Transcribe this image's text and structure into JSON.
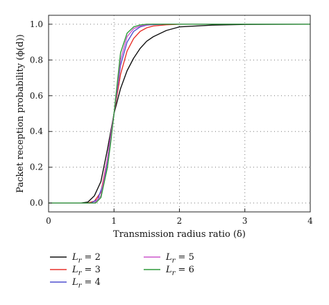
{
  "chart_data": {
    "type": "line",
    "title": "",
    "xlabel": "Transmission radius ratio (δ)",
    "ylabel": "Packet reception probability (ϕ(d))",
    "xlim": [
      0,
      4
    ],
    "ylim": [
      -0.05,
      1.05
    ],
    "xticks": [
      0,
      1,
      2,
      3,
      4
    ],
    "yticks": [
      0.0,
      0.2,
      0.4,
      0.6,
      0.8,
      1.0
    ],
    "xtick_labels": [
      "0",
      "1",
      "2",
      "3",
      "4"
    ],
    "ytick_labels": [
      "0.0",
      "0.2",
      "0.4",
      "0.6",
      "0.8",
      "1.0"
    ],
    "grid": true,
    "grid_style": "dotted",
    "legend_position": "below",
    "series": [
      {
        "name": "L_r = 2",
        "name_parts": [
          "L",
          "r",
          " = 2"
        ],
        "color": "#111111",
        "x": [
          0,
          0.5,
          0.6,
          0.7,
          0.8,
          0.9,
          1.0,
          1.1,
          1.2,
          1.3,
          1.4,
          1.5,
          1.6,
          1.8,
          2.0,
          2.5,
          3.0,
          4.0
        ],
        "y": [
          0,
          0,
          0.005,
          0.04,
          0.12,
          0.3,
          0.5,
          0.64,
          0.74,
          0.81,
          0.865,
          0.905,
          0.93,
          0.965,
          0.985,
          0.995,
          0.999,
          1.0
        ]
      },
      {
        "name": "L_r = 3",
        "name_parts": [
          "L",
          "r",
          " = 3"
        ],
        "color": "#e8312a",
        "x": [
          0,
          0.6,
          0.7,
          0.8,
          0.9,
          1.0,
          1.1,
          1.2,
          1.3,
          1.4,
          1.5,
          1.6,
          1.8,
          2.0,
          4.0
        ],
        "y": [
          0,
          0,
          0.01,
          0.06,
          0.25,
          0.5,
          0.72,
          0.85,
          0.92,
          0.96,
          0.98,
          0.99,
          0.997,
          1.0,
          1.0
        ]
      },
      {
        "name": "L_r = 4",
        "name_parts": [
          "L",
          "r",
          " = 4"
        ],
        "color": "#4f4fcf",
        "x": [
          0,
          0.65,
          0.75,
          0.85,
          0.95,
          1.0,
          1.1,
          1.2,
          1.3,
          1.4,
          1.5,
          1.6,
          1.8,
          4.0
        ],
        "y": [
          0,
          0,
          0.02,
          0.12,
          0.36,
          0.5,
          0.77,
          0.9,
          0.96,
          0.985,
          0.995,
          0.998,
          1.0,
          1.0
        ]
      },
      {
        "name": "L_r = 5",
        "name_parts": [
          "L",
          "r",
          " = 5"
        ],
        "color": "#cc55cc",
        "x": [
          0,
          0.7,
          0.8,
          0.9,
          0.95,
          1.0,
          1.1,
          1.2,
          1.3,
          1.4,
          1.5,
          1.6,
          4.0
        ],
        "y": [
          0,
          0,
          0.04,
          0.25,
          0.38,
          0.5,
          0.8,
          0.93,
          0.975,
          0.99,
          0.997,
          1.0,
          1.0
        ]
      },
      {
        "name": "L_r = 6",
        "name_parts": [
          "L",
          "r",
          " = 6"
        ],
        "color": "#2e9a3a",
        "x": [
          0,
          0.72,
          0.8,
          0.9,
          0.95,
          1.0,
          1.1,
          1.2,
          1.3,
          1.4,
          1.5,
          4.0
        ],
        "y": [
          0,
          0,
          0.03,
          0.2,
          0.34,
          0.5,
          0.84,
          0.95,
          0.985,
          0.996,
          1.0,
          1.0
        ]
      }
    ]
  }
}
